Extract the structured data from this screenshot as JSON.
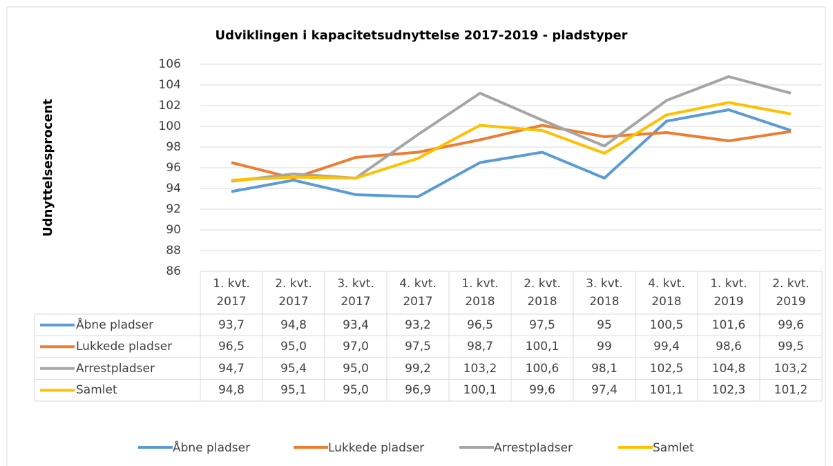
{
  "chart_data": {
    "type": "line",
    "title": "Udviklingen i kapacitetsudnyttelse 2017-2019 - pladstyper",
    "y_label": "Udnyttelsesprocent",
    "categories": [
      "1. kvt. 2017",
      "2. kvt. 2017",
      "3. kvt. 2017",
      "4. kvt. 2017",
      "1. kvt. 2018",
      "2. kvt. 2018",
      "3. kvt. 2018",
      "4. kvt. 2018",
      "1. kvt. 2019",
      "2. kvt. 2019"
    ],
    "series": [
      {
        "name": "Åbne pladser",
        "color": "#5b9bd5",
        "values": [
          93.7,
          94.8,
          93.4,
          93.2,
          96.5,
          97.5,
          95,
          100.5,
          101.6,
          99.6
        ],
        "value_labels": [
          "93,7",
          "94,8",
          "93,4",
          "93,2",
          "96,5",
          "97,5",
          "95",
          "100,5",
          "101,6",
          "99,6"
        ]
      },
      {
        "name": "Lukkede pladser",
        "color": "#ed7d31",
        "values": [
          96.5,
          95.0,
          97.0,
          97.5,
          98.7,
          100.1,
          99,
          99.4,
          98.6,
          99.5
        ],
        "value_labels": [
          "96,5",
          "95,0",
          "97,0",
          "97,5",
          "98,7",
          "100,1",
          "99",
          "99,4",
          "98,6",
          "99,5"
        ]
      },
      {
        "name": "Arrestpladser",
        "color": "#a5a5a5",
        "values": [
          94.7,
          95.4,
          95.0,
          99.2,
          103.2,
          100.6,
          98.1,
          102.5,
          104.8,
          103.2
        ],
        "value_labels": [
          "94,7",
          "95,4",
          "95,0",
          "99,2",
          "103,2",
          "100,6",
          "98,1",
          "102,5",
          "104,8",
          "103,2"
        ]
      },
      {
        "name": "Samlet",
        "color": "#ffc000",
        "values": [
          94.8,
          95.1,
          95.0,
          96.9,
          100.1,
          99.6,
          97.4,
          101.1,
          102.3,
          101.2
        ],
        "value_labels": [
          "94,8",
          "95,1",
          "95,0",
          "96,9",
          "100,1",
          "99,6",
          "97,4",
          "101,1",
          "102,3",
          "101,2"
        ]
      }
    ],
    "ylim": [
      86,
      106
    ],
    "yticks": [
      86,
      88,
      90,
      92,
      94,
      96,
      98,
      100,
      102,
      104,
      106
    ],
    "grid": true,
    "legend": "bottom"
  }
}
